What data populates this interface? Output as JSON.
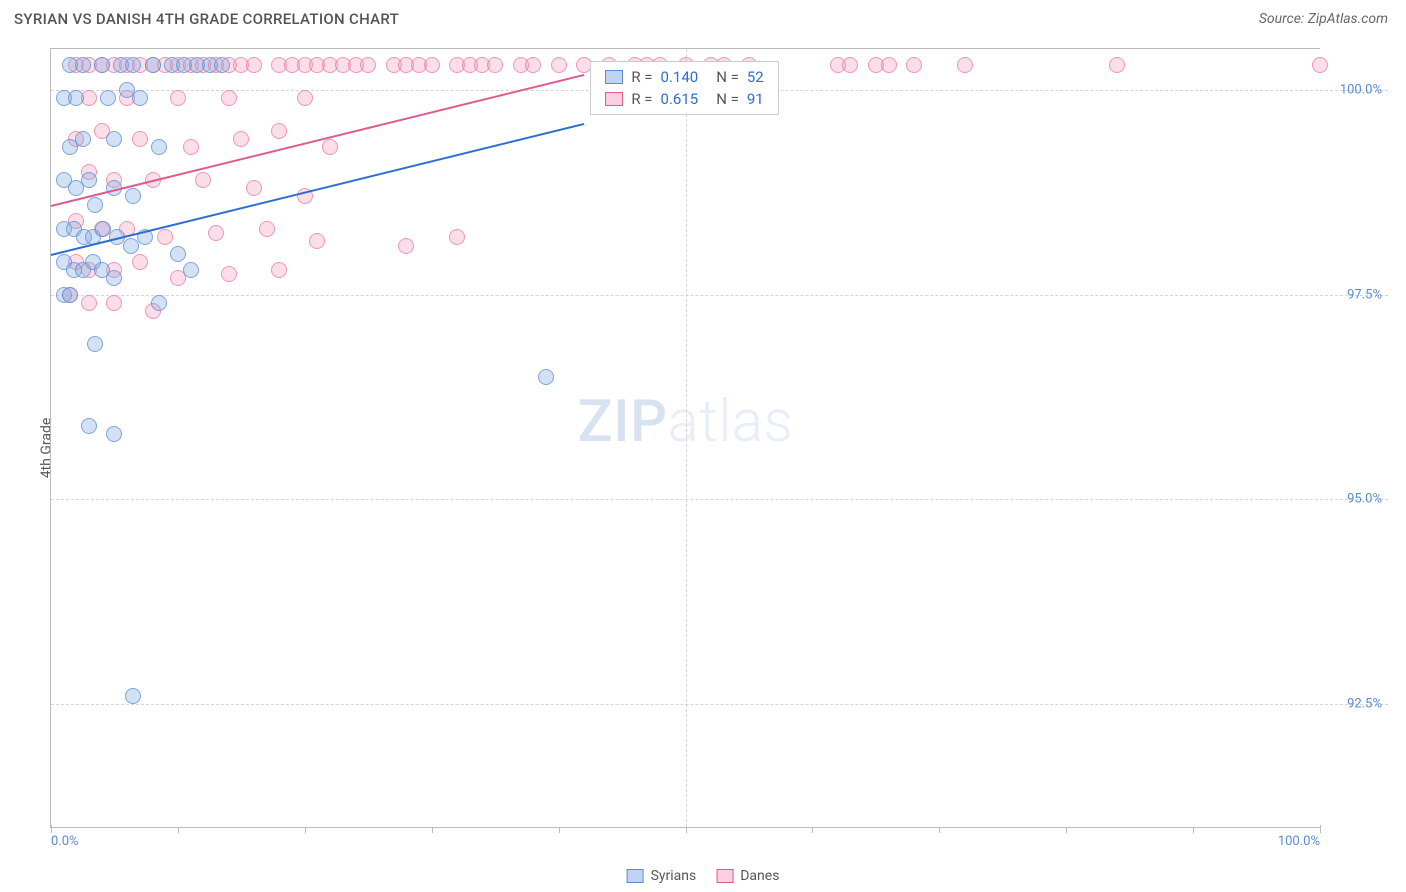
{
  "header": {
    "title": "SYRIAN VS DANISH 4TH GRADE CORRELATION CHART",
    "source": "Source: ZipAtlas.com"
  },
  "chart": {
    "type": "scatter",
    "yaxis_title": "4th Grade",
    "watermark_zip": "ZIP",
    "watermark_atlas": "atlas",
    "xlim": [
      0,
      100
    ],
    "ylim": [
      91.0,
      100.5
    ],
    "y_ticks": [
      {
        "v": 100.0,
        "label": "100.0%"
      },
      {
        "v": 97.5,
        "label": "97.5%"
      },
      {
        "v": 95.0,
        "label": "95.0%"
      },
      {
        "v": 92.5,
        "label": "92.5%"
      }
    ],
    "x_ticks_major": [
      0,
      50,
      100
    ],
    "x_ticks_minor": [
      10,
      20,
      30,
      40,
      60,
      70,
      80,
      90
    ],
    "x_labels": [
      {
        "v": 0,
        "label": "0.0%"
      },
      {
        "v": 100,
        "label": "100.0%"
      }
    ],
    "series_a": {
      "name": "Syrians",
      "color_fill": "rgba(130,170,225,0.35)",
      "color_stroke": "#5b8bd4",
      "trend_color": "#2c6fd1",
      "R": "0.140",
      "N": "52",
      "trend": {
        "x1": 0,
        "y1": 98.0,
        "x2": 42,
        "y2": 99.6
      },
      "points": [
        [
          1.5,
          100.3
        ],
        [
          2.5,
          100.3
        ],
        [
          4.0,
          100.3
        ],
        [
          5.5,
          100.3
        ],
        [
          6.5,
          100.3
        ],
        [
          8.0,
          100.3
        ],
        [
          9.5,
          100.3
        ],
        [
          10.5,
          100.3
        ],
        [
          11.5,
          100.3
        ],
        [
          12.5,
          100.3
        ],
        [
          13.5,
          100.3
        ],
        [
          1.0,
          99.9
        ],
        [
          2.0,
          99.9
        ],
        [
          4.5,
          99.9
        ],
        [
          6.0,
          100.0
        ],
        [
          7.0,
          99.9
        ],
        [
          1.5,
          99.3
        ],
        [
          2.5,
          99.4
        ],
        [
          5.0,
          99.4
        ],
        [
          8.5,
          99.3
        ],
        [
          1.0,
          98.9
        ],
        [
          2.0,
          98.8
        ],
        [
          3.0,
          98.9
        ],
        [
          3.5,
          98.6
        ],
        [
          5.0,
          98.8
        ],
        [
          6.5,
          98.7
        ],
        [
          1.0,
          98.3
        ],
        [
          1.8,
          98.3
        ],
        [
          2.6,
          98.2
        ],
        [
          3.3,
          98.2
        ],
        [
          4.1,
          98.3
        ],
        [
          5.2,
          98.2
        ],
        [
          6.3,
          98.1
        ],
        [
          7.4,
          98.2
        ],
        [
          10.0,
          98.0
        ],
        [
          1.0,
          97.9
        ],
        [
          1.8,
          97.8
        ],
        [
          2.5,
          97.8
        ],
        [
          3.3,
          97.9
        ],
        [
          4.0,
          97.8
        ],
        [
          5.0,
          97.7
        ],
        [
          11.0,
          97.8
        ],
        [
          1.0,
          97.5
        ],
        [
          1.5,
          97.5
        ],
        [
          8.5,
          97.4
        ],
        [
          3.5,
          96.9
        ],
        [
          3.0,
          95.9
        ],
        [
          5.0,
          95.8
        ],
        [
          39.0,
          96.5
        ],
        [
          6.5,
          92.6
        ]
      ]
    },
    "series_b": {
      "name": "Danes",
      "color_fill": "rgba(245,160,190,0.35)",
      "color_stroke": "#e05a90",
      "trend_color": "#e05a90",
      "R": "0.615",
      "N": "91",
      "trend": {
        "x1": 0,
        "y1": 98.6,
        "x2": 42,
        "y2": 100.2
      },
      "points": [
        [
          2,
          100.3
        ],
        [
          3,
          100.3
        ],
        [
          4,
          100.3
        ],
        [
          5,
          100.3
        ],
        [
          6,
          100.3
        ],
        [
          7,
          100.3
        ],
        [
          8,
          100.3
        ],
        [
          9,
          100.3
        ],
        [
          10,
          100.3
        ],
        [
          11,
          100.3
        ],
        [
          12,
          100.3
        ],
        [
          13,
          100.3
        ],
        [
          14,
          100.3
        ],
        [
          15,
          100.3
        ],
        [
          16,
          100.3
        ],
        [
          18,
          100.3
        ],
        [
          19,
          100.3
        ],
        [
          20,
          100.3
        ],
        [
          21,
          100.3
        ],
        [
          22,
          100.3
        ],
        [
          23,
          100.3
        ],
        [
          24,
          100.3
        ],
        [
          25,
          100.3
        ],
        [
          27,
          100.3
        ],
        [
          28,
          100.3
        ],
        [
          29,
          100.3
        ],
        [
          30,
          100.3
        ],
        [
          32,
          100.3
        ],
        [
          33,
          100.3
        ],
        [
          34,
          100.3
        ],
        [
          35,
          100.3
        ],
        [
          37,
          100.3
        ],
        [
          38,
          100.3
        ],
        [
          40,
          100.3
        ],
        [
          42,
          100.3
        ],
        [
          44,
          100.3
        ],
        [
          46,
          100.3
        ],
        [
          47,
          100.3
        ],
        [
          48,
          100.3
        ],
        [
          50,
          100.3
        ],
        [
          52,
          100.3
        ],
        [
          53,
          100.3
        ],
        [
          55,
          100.3
        ],
        [
          62,
          100.3
        ],
        [
          63,
          100.3
        ],
        [
          65,
          100.3
        ],
        [
          66,
          100.3
        ],
        [
          68,
          100.3
        ],
        [
          72,
          100.3
        ],
        [
          84,
          100.3
        ],
        [
          100,
          100.3
        ],
        [
          3,
          99.9
        ],
        [
          6,
          99.9
        ],
        [
          10,
          99.9
        ],
        [
          14,
          99.9
        ],
        [
          20,
          99.9
        ],
        [
          2,
          99.4
        ],
        [
          4,
          99.5
        ],
        [
          7,
          99.4
        ],
        [
          11,
          99.3
        ],
        [
          15,
          99.4
        ],
        [
          18,
          99.5
        ],
        [
          22,
          99.3
        ],
        [
          3,
          99.0
        ],
        [
          5,
          98.9
        ],
        [
          8,
          98.9
        ],
        [
          12,
          98.9
        ],
        [
          16,
          98.8
        ],
        [
          20,
          98.7
        ],
        [
          2,
          98.4
        ],
        [
          4,
          98.3
        ],
        [
          6,
          98.3
        ],
        [
          9,
          98.2
        ],
        [
          13,
          98.25
        ],
        [
          17,
          98.3
        ],
        [
          21,
          98.15
        ],
        [
          28,
          98.1
        ],
        [
          32,
          98.2
        ],
        [
          2,
          97.9
        ],
        [
          3,
          97.8
        ],
        [
          5,
          97.8
        ],
        [
          7,
          97.9
        ],
        [
          10,
          97.7
        ],
        [
          14,
          97.75
        ],
        [
          18,
          97.8
        ],
        [
          1.5,
          97.5
        ],
        [
          3,
          97.4
        ],
        [
          5,
          97.4
        ],
        [
          8,
          97.3
        ]
      ]
    },
    "stats_box": {
      "left_pct": 42.5,
      "top_pct": 1.5
    },
    "legend": {
      "a": "Syrians",
      "b": "Danes"
    }
  }
}
